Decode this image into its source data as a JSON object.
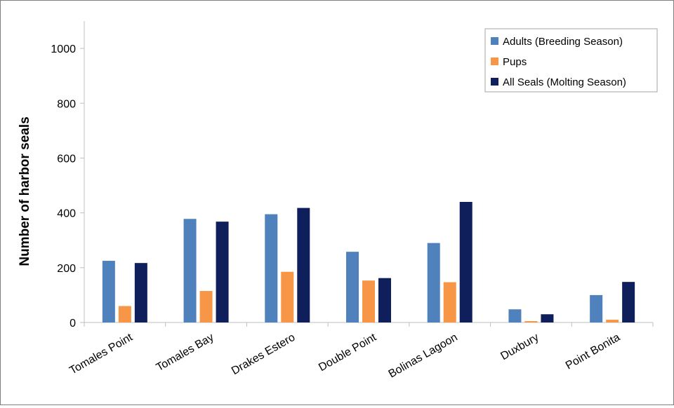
{
  "chart_data": {
    "type": "bar",
    "title": "",
    "xlabel": "",
    "ylabel": "Number of harbor seals",
    "ylim": [
      0,
      1100
    ],
    "yticks": [
      0,
      200,
      400,
      600,
      800,
      1000
    ],
    "grid": false,
    "legend_position": "top-right",
    "categories": [
      "Tomales Point",
      "Tomales Bay",
      "Drakes Estero",
      "Double Point",
      "Bolinas Lagoon",
      "Duxbury",
      "Point Bonita"
    ],
    "series": [
      {
        "name": "Adults (Breeding Season)",
        "color": "#4f81bd",
        "values": [
          225,
          378,
          395,
          258,
          290,
          48,
          100
        ]
      },
      {
        "name": "Pups",
        "color": "#f79646",
        "values": [
          60,
          115,
          185,
          153,
          147,
          5,
          10
        ]
      },
      {
        "name": "All Seals (Molting Season)",
        "color": "#0f1f5c",
        "values": [
          217,
          368,
          418,
          162,
          440,
          30,
          148
        ]
      }
    ]
  }
}
